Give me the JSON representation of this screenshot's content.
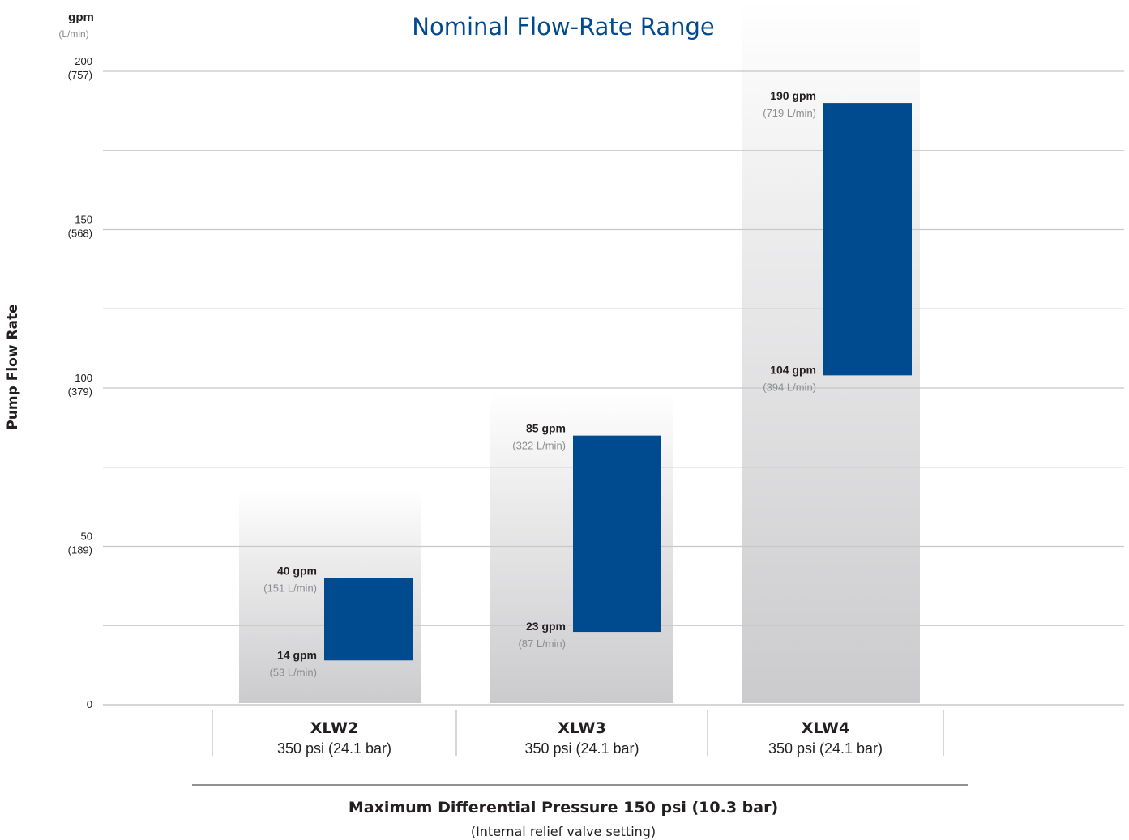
{
  "chart_data": {
    "type": "bar",
    "subtype": "floating-range",
    "title": "Nominal Flow-Rate Range",
    "y_unit_primary": "gpm",
    "y_unit_secondary": "(L/min)",
    "ylabel": "Pump Flow Rate",
    "ylim": [
      0,
      200
    ],
    "grid": true,
    "y_ticks": [
      {
        "value": 0,
        "label": "0",
        "sublabel": ""
      },
      {
        "value": 50,
        "label": "50",
        "sublabel": "(189)"
      },
      {
        "value": 100,
        "label": "100",
        "sublabel": "(379)"
      },
      {
        "value": 150,
        "label": "150",
        "sublabel": "(568)"
      },
      {
        "value": 200,
        "label": "200",
        "sublabel": "(757)"
      }
    ],
    "gridlines": [
      25,
      50,
      75,
      100,
      125,
      150,
      175,
      200
    ],
    "series_color": "#004a8f",
    "categories": [
      {
        "name": "XLW2",
        "pressure": "350 psi (24.1 bar)",
        "min": 14,
        "max": 40,
        "min_label": "14 gpm",
        "min_sublabel": "(53 L/min)",
        "max_label": "40 gpm",
        "max_sublabel": "(151 L/min)"
      },
      {
        "name": "XLW3",
        "pressure": "350 psi (24.1 bar)",
        "min": 23,
        "max": 85,
        "min_label": "23 gpm",
        "min_sublabel": "(87 L/min)",
        "max_label": "85 gpm",
        "max_sublabel": "(322 L/min)"
      },
      {
        "name": "XLW4",
        "pressure": "350 psi (24.1 bar)",
        "min": 104,
        "max": 190,
        "min_label": "104 gpm",
        "min_sublabel": "(394 L/min)",
        "max_label": "190 gpm",
        "max_sublabel": "(719 L/min)"
      }
    ],
    "footer_main": "Maximum Differential Pressure 150 psi (10.3 bar)",
    "footer_sub": "(Internal relief valve setting)"
  }
}
